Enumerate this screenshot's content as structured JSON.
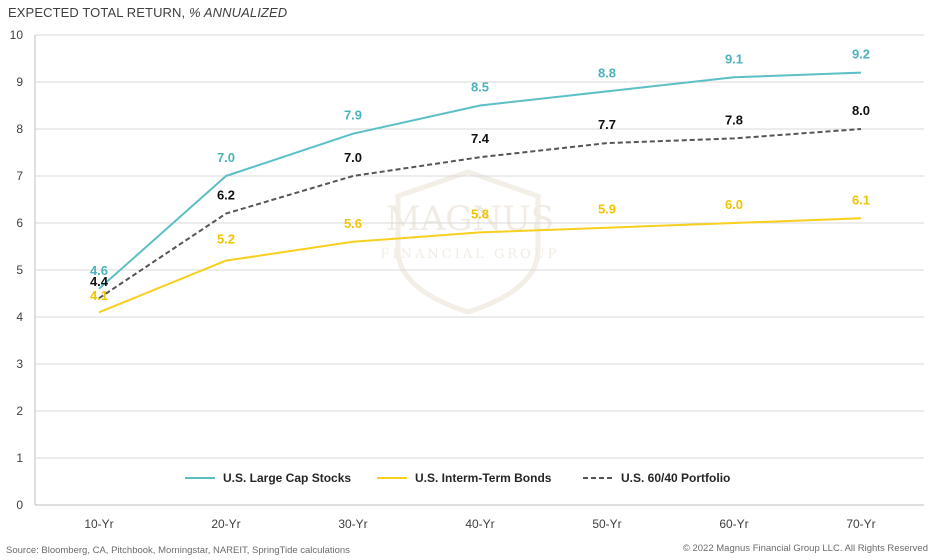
{
  "title": {
    "main": "EXPECTED TOTAL RETURN, ",
    "italic": "% ANNUALIZED"
  },
  "source": "Source: Bloomberg, CA, Pitchbook, Morningstar, NAREIT, SpringTide calculations",
  "copyright": "© 2022 Magnus Financial Group LLC. All Rights Reserved",
  "watermark": {
    "line1": "MAGNUS",
    "line2": "FINANCIAL GROUP"
  },
  "colors": {
    "stocks": "#5bbfc5",
    "bonds": "#f7cf1f",
    "portfolio": "#555555",
    "grid": "#d9d9d9"
  },
  "chart_data": {
    "type": "line",
    "categories": [
      "10-Yr",
      "20-Yr",
      "30-Yr",
      "40-Yr",
      "50-Yr",
      "60-Yr",
      "70-Yr"
    ],
    "ylim": [
      0,
      10
    ],
    "yticks": [
      0,
      1,
      2,
      3,
      4,
      5,
      6,
      7,
      8,
      9,
      10
    ],
    "grid": true,
    "legend_position": "bottom",
    "series": [
      {
        "name": "U.S. Large Cap Stocks",
        "color": "#5bbfc5",
        "dash": "solid",
        "values": [
          4.6,
          7.0,
          7.9,
          8.5,
          8.8,
          9.1,
          9.2
        ],
        "labels": [
          "4.6",
          "7.0",
          "7.9",
          "8.5",
          "8.8",
          "9.1",
          "9.2"
        ],
        "label_color": "#4bb3ba"
      },
      {
        "name": "U.S. Interm-Term Bonds",
        "color": "#f7cf1f",
        "dash": "solid",
        "values": [
          4.1,
          5.2,
          5.6,
          5.8,
          5.9,
          6.0,
          6.1
        ],
        "labels": [
          "4.1",
          "5.2",
          "5.6",
          "5.8",
          "5.9",
          "6.0",
          "6.1"
        ],
        "label_color": "#f2c300"
      },
      {
        "name": "U.S. 60/40 Portfolio",
        "color": "#555555",
        "dash": "dashed",
        "values": [
          4.4,
          6.2,
          7.0,
          7.4,
          7.7,
          7.8,
          8.0
        ],
        "labels": [
          "4.4",
          "6.2",
          "7.0",
          "7.4",
          "7.7",
          "7.8",
          "8.0"
        ],
        "label_color": "#111111"
      }
    ]
  }
}
